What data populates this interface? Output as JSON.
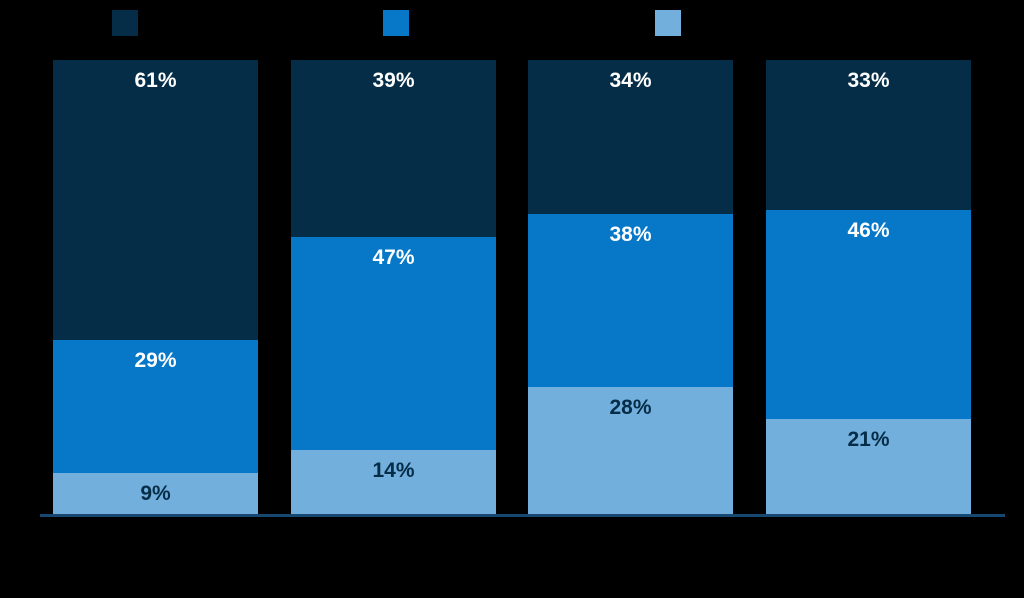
{
  "page": {
    "background_color": "#000000"
  },
  "legend": {
    "text_color": "#000000",
    "items": [
      {
        "label": "",
        "color": "#052d47"
      },
      {
        "label": "",
        "color": "#0777c8"
      },
      {
        "label": "",
        "color": "#72afdc"
      }
    ]
  },
  "chart_data": {
    "type": "bar",
    "stacked": true,
    "orientation": "vertical",
    "title": "",
    "xlabel": "",
    "ylabel": "",
    "grid": false,
    "legend_position": "top",
    "axis_line_color": "#164871",
    "category_label_color": "#000000",
    "categories": [
      "",
      "",
      "",
      ""
    ],
    "value_suffix": "%",
    "series": [
      {
        "name": "",
        "color": "#052d47",
        "value_label_color": "#ffffff",
        "values": [
          61,
          39,
          34,
          33
        ]
      },
      {
        "name": "",
        "color": "#0777c8",
        "value_label_color": "#ffffff",
        "values": [
          29,
          47,
          38,
          46
        ]
      },
      {
        "name": "",
        "color": "#72afdc",
        "value_label_color": "#052d47",
        "values": [
          9,
          14,
          28,
          21
        ]
      }
    ]
  }
}
